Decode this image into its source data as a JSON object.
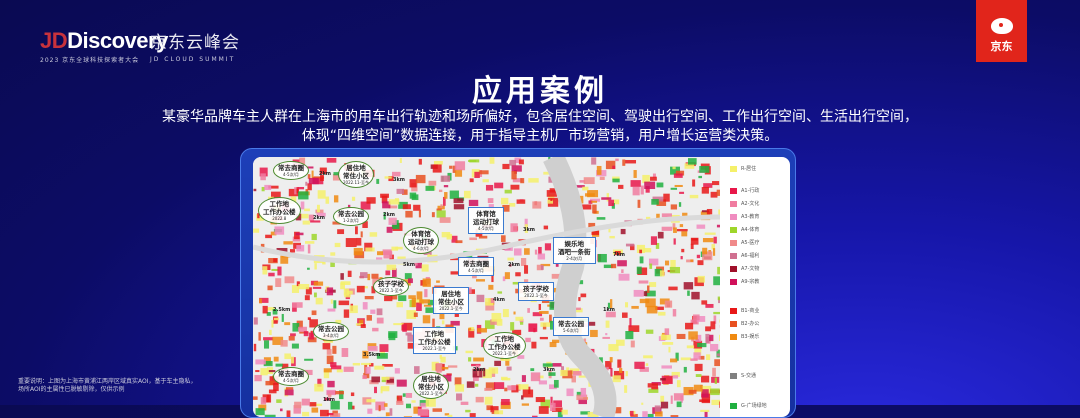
{
  "header": {
    "brand_jd": "JD",
    "brand_discovery": "Discovery",
    "brand_sub": "2023 京东全球科技探索者大会",
    "brand_cn": "京东云峰会",
    "brand_en": "JD CLOUD SUMMIT",
    "logo_text": "京东"
  },
  "title": "应用案例",
  "description": [
    "某豪华品牌车主人群在上海市的用车出行轨迹和场所偏好，包含居住空间、驾驶出行空间、工作出行空间、生活出行空间，",
    "体现“四维空间”数据连接，用于指导主机厂市场营销，用户增长运营类决策。"
  ],
  "note": [
    "重要说明：上图为上海市黄浦江两岸区域真实AOI，基于车主隐私，",
    "场所AOI的主属性已脱敏剔除，仅供示例"
  ],
  "legend": [
    {
      "label": "R-居住",
      "color": "#f5f06a"
    },
    {
      "label": "A1-行政",
      "color": "#e8174a"
    },
    {
      "label": "A2-文化",
      "color": "#f07ca0"
    },
    {
      "label": "A3-教育",
      "color": "#f08cc0"
    },
    {
      "label": "A4-体育",
      "color": "#9ed62a"
    },
    {
      "label": "A5-医疗",
      "color": "#f08a8a"
    },
    {
      "label": "A6-福利",
      "color": "#d07090"
    },
    {
      "label": "A7-文物",
      "color": "#a0102a"
    },
    {
      "label": "A9-宗教",
      "color": "#d0105a"
    },
    {
      "label": "B1-商业",
      "color": "#e81818"
    },
    {
      "label": "B2-办公",
      "color": "#e85020"
    },
    {
      "label": "B3-娱乐",
      "color": "#f08a10"
    },
    {
      "label": "S-交通",
      "color": "#808080"
    },
    {
      "label": "G-广场绿地",
      "color": "#20b040"
    }
  ],
  "callouts": [
    {
      "title": "常去商圈",
      "sub": "4-5次/月",
      "style": "g"
    },
    {
      "title": "居住地\n常住小区",
      "sub": "2022.11-至今",
      "style": "g"
    },
    {
      "title": "工作地\n工作办公楼",
      "sub": "2022.8",
      "style": "g"
    },
    {
      "title": "常去公园",
      "sub": "1-2次/月",
      "style": "g"
    },
    {
      "title": "体育馆\n运动打球",
      "sub": "4-6次/月",
      "style": "g"
    },
    {
      "title": "体育馆\n运动打球",
      "sub": "4-5次/月",
      "style": "b"
    },
    {
      "title": "娱乐地\n酒吧一条街",
      "sub": "2-4次/月",
      "style": "b"
    },
    {
      "title": "常去商圈",
      "sub": "4-5次/月",
      "style": "b"
    },
    {
      "title": "孩子学校",
      "sub": "2022.1-至今",
      "style": "g"
    },
    {
      "title": "居住地\n常住小区",
      "sub": "2022.1-至今",
      "style": "b"
    },
    {
      "title": "孩子学校",
      "sub": "2022.1-至今",
      "style": "b"
    },
    {
      "title": "常去公园",
      "sub": "5-6次/月",
      "style": "b"
    },
    {
      "title": "工作地\n工作办公楼",
      "sub": "2022.1-至今",
      "style": "b"
    },
    {
      "title": "工作地\n工作办公楼",
      "sub": "2022.1-至今",
      "style": "g"
    },
    {
      "title": "常去公园",
      "sub": "3-4次/月",
      "style": "g"
    },
    {
      "title": "常去商圈",
      "sub": "4-5次/月",
      "style": "g"
    },
    {
      "title": "居住地\n常住小区",
      "sub": "2022.1-至今",
      "style": "g"
    }
  ],
  "distances": [
    "2km",
    "3km",
    "2km",
    "2km",
    "5km",
    "3km",
    "7km",
    "2km",
    "4km",
    "1km",
    "2.5km",
    "3.5km",
    "1km",
    "2km",
    "3km"
  ]
}
